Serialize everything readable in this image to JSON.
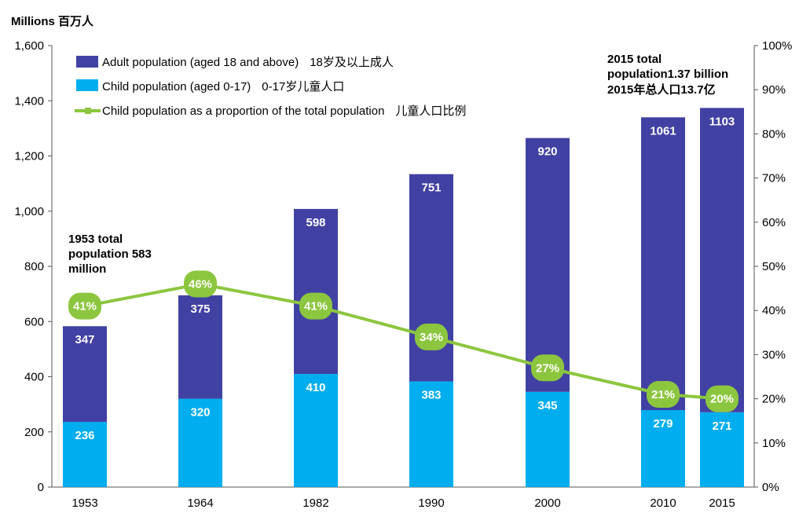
{
  "chart_data": {
    "type": "bar",
    "stacked": true,
    "title": "Millions 百万人",
    "categories": [
      "1953",
      "1964",
      "1982",
      "1990",
      "2000",
      "2010",
      "2015"
    ],
    "series": [
      {
        "name": "Child population (aged 0-17)",
        "name_zh": "0-17岁儿童人口",
        "values": [
          236,
          320,
          410,
          383,
          345,
          279,
          271
        ],
        "color": "#00AEEF"
      },
      {
        "name": "Adult population (aged 18 and above)",
        "name_zh": "18岁及以上成人",
        "values": [
          347,
          375,
          598,
          751,
          920,
          1061,
          1103
        ],
        "color": "#4141A3"
      }
    ],
    "line_series": {
      "name": "Child population as a proportion of the total population",
      "name_zh": "儿童人口比例",
      "values": [
        41,
        46,
        41,
        34,
        27,
        21,
        20
      ],
      "labels": [
        "41%",
        "46%",
        "41%",
        "34%",
        "27%",
        "21%",
        "20%"
      ],
      "color": "#8CC63F"
    },
    "ylim": [
      0,
      1600
    ],
    "y_ticks": [
      "0",
      "200",
      "400",
      "600",
      "800",
      "1,000",
      "1,200",
      "1,400",
      "1,600"
    ],
    "y2lim": [
      0,
      100
    ],
    "y2_ticks": [
      "0%",
      "10%",
      "20%",
      "30%",
      "40%",
      "50%",
      "60%",
      "70%",
      "80%",
      "90%",
      "100%"
    ],
    "legend_position": "top-left",
    "annotations": [
      {
        "lines": [
          "1953 total",
          "population 583",
          "million"
        ]
      },
      {
        "lines": [
          "2015 total",
          "population1.37 billion",
          "2015年总人口13.7亿"
        ]
      }
    ]
  }
}
